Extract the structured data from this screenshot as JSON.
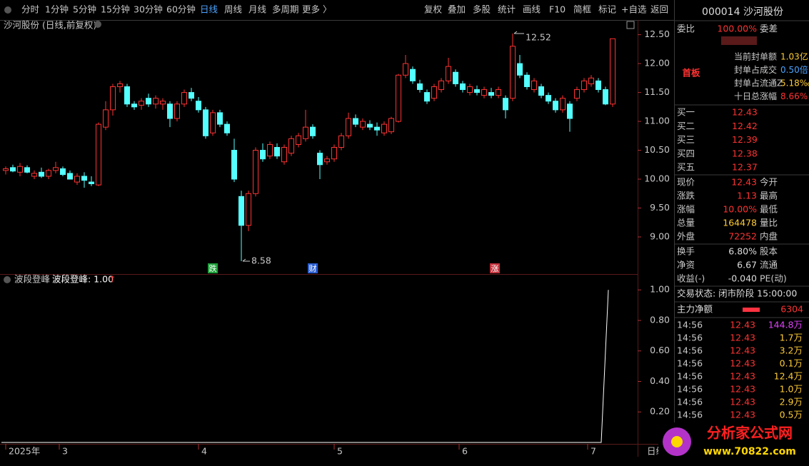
{
  "toolbar": {
    "periods": [
      "分时",
      "1分钟",
      "5分钟",
      "15分钟",
      "30分钟",
      "60分钟",
      "日线",
      "周线",
      "月线",
      "多周期",
      "更多 〉"
    ],
    "active_index": 6,
    "tools": [
      "复权",
      "叠加",
      "多股",
      "统计",
      "画线",
      "F10",
      "简框",
      "标记",
      "+自选",
      "返回"
    ]
  },
  "chart_data": [
    {
      "type": "candlestick",
      "title": "沙河股份 (日线,前复权)",
      "up_color": "#ff3232",
      "down_color": "#54ffff",
      "ylim": [
        8.37,
        12.73
      ],
      "yticks": [
        {
          "value": 12.5,
          "label": "12.50"
        },
        {
          "value": 12,
          "label": "12.00"
        },
        {
          "value": 11.5,
          "label": "11.50"
        },
        {
          "value": 11,
          "label": "11.00"
        },
        {
          "value": 10.5,
          "label": "10.50"
        },
        {
          "value": 10,
          "label": "10.00"
        },
        {
          "value": 9.5,
          "label": "9.50"
        },
        {
          "value": 9,
          "label": "9.00"
        }
      ],
      "xticks": [
        {
          "value": 0,
          "label": "2025年"
        },
        {
          "value": 7.5,
          "label": "3"
        },
        {
          "value": 27,
          "label": "4"
        },
        {
          "value": 46,
          "label": "5"
        },
        {
          "value": 63.5,
          "label": "6"
        },
        {
          "value": 81.5,
          "label": "7"
        }
      ],
      "period_label": "日线",
      "markers": [
        {
          "index": 29,
          "label": "跌",
          "color": "#1e9e3a"
        },
        {
          "index": 43,
          "label": "财",
          "color": "#2a5ccf"
        },
        {
          "index": 68.5,
          "label": "涨",
          "color": "#c0303a"
        }
      ],
      "high_label_index": 71,
      "low_label_index": 33,
      "candles": [
        [
          10.15,
          10.22,
          10.08,
          10.18
        ],
        [
          10.2,
          10.25,
          10.12,
          10.14
        ],
        [
          10.12,
          10.28,
          10.05,
          10.22
        ],
        [
          10.2,
          10.24,
          10.1,
          10.12
        ],
        [
          10.05,
          10.15,
          10.0,
          10.1
        ],
        [
          10.12,
          10.2,
          10.02,
          10.05
        ],
        [
          10.05,
          10.18,
          10.0,
          10.15
        ],
        [
          10.15,
          10.3,
          10.1,
          10.2
        ],
        [
          10.18,
          10.22,
          10.05,
          10.08
        ],
        [
          10.1,
          10.15,
          10.0,
          10.0
        ],
        [
          9.95,
          10.1,
          9.9,
          10.05
        ],
        [
          10.05,
          10.12,
          9.85,
          9.98
        ],
        [
          9.95,
          10.05,
          9.88,
          9.92
        ],
        [
          9.9,
          10.98,
          9.88,
          10.95
        ],
        [
          10.9,
          11.35,
          10.85,
          11.2
        ],
        [
          11.2,
          11.65,
          11.1,
          11.6
        ],
        [
          11.6,
          11.7,
          11.5,
          11.65
        ],
        [
          11.6,
          11.65,
          11.25,
          11.3
        ],
        [
          11.3,
          11.35,
          11.2,
          11.25
        ],
        [
          11.28,
          11.4,
          11.2,
          11.35
        ],
        [
          11.4,
          11.48,
          11.25,
          11.3
        ],
        [
          11.3,
          11.45,
          11.22,
          11.4
        ],
        [
          11.3,
          11.4,
          11.2,
          11.35
        ],
        [
          11.3,
          11.35,
          10.9,
          11.05
        ],
        [
          11.05,
          11.35,
          11.0,
          11.3
        ],
        [
          11.3,
          11.55,
          11.25,
          11.5
        ],
        [
          11.5,
          11.58,
          11.35,
          11.4
        ],
        [
          11.35,
          11.42,
          11.15,
          11.2
        ],
        [
          11.2,
          11.25,
          10.7,
          10.75
        ],
        [
          10.8,
          11.2,
          10.75,
          11.15
        ],
        [
          11.15,
          11.2,
          10.9,
          10.95
        ],
        [
          10.95,
          11.0,
          10.75,
          10.8
        ],
        [
          10.5,
          10.7,
          9.95,
          10.0
        ],
        [
          9.7,
          9.8,
          8.58,
          9.2
        ],
        [
          9.2,
          9.8,
          9.1,
          9.75
        ],
        [
          9.75,
          10.55,
          9.7,
          10.5
        ],
        [
          10.5,
          10.62,
          10.3,
          10.35
        ],
        [
          10.4,
          10.65,
          10.35,
          10.6
        ],
        [
          10.55,
          10.62,
          10.35,
          10.4
        ],
        [
          10.3,
          10.6,
          10.25,
          10.55
        ],
        [
          10.45,
          10.75,
          10.4,
          10.7
        ],
        [
          10.6,
          10.8,
          10.55,
          10.75
        ],
        [
          10.7,
          11.2,
          10.65,
          10.9
        ],
        [
          10.9,
          10.95,
          10.7,
          10.75
        ],
        [
          10.45,
          10.5,
          10.0,
          10.25
        ],
        [
          10.3,
          10.4,
          10.25,
          10.35
        ],
        [
          10.35,
          10.6,
          10.3,
          10.55
        ],
        [
          10.55,
          10.8,
          10.5,
          10.75
        ],
        [
          10.75,
          11.15,
          10.7,
          11.05
        ],
        [
          11.05,
          11.12,
          10.9,
          10.95
        ],
        [
          10.9,
          11.05,
          10.85,
          11.0
        ],
        [
          10.95,
          11.02,
          10.85,
          10.9
        ],
        [
          10.9,
          10.98,
          10.75,
          10.85
        ],
        [
          10.8,
          11.0,
          10.75,
          10.95
        ],
        [
          10.82,
          11.08,
          10.78,
          11.05
        ],
        [
          11.0,
          11.82,
          10.98,
          11.8
        ],
        [
          11.8,
          12.15,
          11.75,
          12.0
        ],
        [
          11.9,
          11.95,
          11.65,
          11.7
        ],
        [
          11.65,
          11.72,
          11.5,
          11.55
        ],
        [
          11.5,
          11.55,
          11.3,
          11.35
        ],
        [
          11.4,
          11.65,
          11.35,
          11.6
        ],
        [
          11.55,
          11.75,
          11.5,
          11.7
        ],
        [
          11.7,
          12.1,
          11.65,
          11.95
        ],
        [
          11.85,
          11.9,
          11.6,
          11.65
        ],
        [
          11.65,
          11.7,
          11.5,
          11.55
        ],
        [
          11.5,
          11.65,
          11.45,
          11.6
        ],
        [
          11.55,
          11.62,
          11.45,
          11.5
        ],
        [
          11.45,
          11.6,
          11.4,
          11.55
        ],
        [
          11.5,
          11.58,
          11.4,
          11.45
        ],
        [
          11.45,
          11.6,
          11.4,
          11.55
        ],
        [
          11.4,
          11.45,
          11.05,
          11.2
        ],
        [
          11.4,
          12.52,
          11.35,
          12.3
        ],
        [
          12.0,
          12.15,
          11.75,
          11.8
        ],
        [
          11.8,
          11.85,
          11.55,
          11.6
        ],
        [
          11.55,
          11.75,
          11.5,
          11.7
        ],
        [
          11.6,
          11.65,
          11.4,
          11.45
        ],
        [
          11.45,
          11.5,
          11.3,
          11.35
        ],
        [
          11.35,
          11.4,
          11.15,
          11.2
        ],
        [
          11.2,
          11.45,
          11.15,
          11.4
        ],
        [
          11.3,
          11.35,
          10.82,
          11.05
        ],
        [
          11.4,
          11.6,
          11.35,
          11.55
        ],
        [
          11.55,
          11.75,
          11.5,
          11.7
        ],
        [
          11.65,
          11.8,
          11.6,
          11.75
        ],
        [
          11.7,
          11.75,
          11.5,
          11.55
        ],
        [
          11.55,
          11.6,
          11.28,
          11.3
        ],
        [
          11.3,
          12.43,
          11.25,
          12.43
        ]
      ]
    },
    {
      "type": "line",
      "title": "波段登峰",
      "legend": "波段登峰: 1.00",
      "legend_arrow": "↑",
      "color": "#ffffff",
      "ylim": [
        0,
        1.09
      ],
      "yticks": [
        {
          "value": 1,
          "label": "1.00"
        },
        {
          "value": 0.8,
          "label": "0.80"
        },
        {
          "value": 0.6,
          "label": "0.60"
        },
        {
          "value": 0.4,
          "label": "0.40"
        },
        {
          "value": 0.2,
          "label": "0.20"
        }
      ],
      "values": [
        0,
        0,
        0,
        0,
        0,
        0,
        0,
        0,
        0,
        0,
        0,
        0,
        0,
        0,
        0,
        0,
        0,
        0,
        0,
        0,
        0,
        0,
        0,
        0,
        0,
        0,
        0,
        0,
        0,
        0,
        0,
        0,
        0,
        0,
        0,
        0,
        0,
        0,
        0,
        0,
        0,
        0,
        0,
        0,
        0,
        0,
        0,
        0,
        0,
        0,
        0,
        0,
        0,
        0,
        0,
        0,
        0,
        0,
        0,
        0,
        0,
        0,
        0,
        0,
        0,
        0,
        0,
        0,
        0,
        0,
        0,
        0,
        0,
        0,
        0,
        0,
        0,
        0,
        0,
        0,
        0,
        0,
        0,
        0,
        0,
        1
      ]
    }
  ],
  "panel": {
    "header": "000014 沙河股份",
    "weibi": [
      "委比",
      "100.00%",
      "委差"
    ],
    "first_board": "首板",
    "seal": [
      [
        "当前封单额",
        "1.03亿"
      ],
      [
        "封单占成交",
        "0.50倍"
      ],
      [
        "封单占流通Z",
        "5.18‰"
      ],
      [
        "十日总涨幅",
        "8.66%"
      ]
    ],
    "bids": [
      [
        "买一",
        "12.43"
      ],
      [
        "买二",
        "12.42"
      ],
      [
        "买三",
        "12.39"
      ],
      [
        "买四",
        "12.38"
      ],
      [
        "买五",
        "12.37"
      ]
    ],
    "quote": [
      [
        "现价",
        "12.43",
        "今开"
      ],
      [
        "涨跌",
        "1.13",
        "最高"
      ],
      [
        "涨幅",
        "10.00%",
        "最低"
      ],
      [
        "总量",
        "164478",
        "量比"
      ],
      [
        "外盘",
        "72252",
        "内盘"
      ]
    ],
    "stats": [
      [
        "换手",
        "6.80%",
        "股本"
      ],
      [
        "净资",
        "6.67",
        "流通"
      ],
      [
        "收益(-)",
        "-0.040",
        "PE(动)"
      ]
    ],
    "status": "交易状态: 闭市阶段 15:00:00",
    "main_net": [
      "主力净额",
      "6304"
    ],
    "trades": [
      [
        "14:56",
        "12.43",
        "144.8万"
      ],
      [
        "14:56",
        "12.43",
        "1.7万"
      ],
      [
        "14:56",
        "12.43",
        "3.2万"
      ],
      [
        "14:56",
        "12.43",
        "0.1万"
      ],
      [
        "14:56",
        "12.43",
        "12.4万"
      ],
      [
        "14:56",
        "12.43",
        "1.0万"
      ],
      [
        "14:56",
        "12.43",
        "2.9万"
      ],
      [
        "14:56",
        "12.43",
        "0.5万"
      ]
    ],
    "logo": [
      "分析家公式网",
      "www.70822.com"
    ]
  }
}
